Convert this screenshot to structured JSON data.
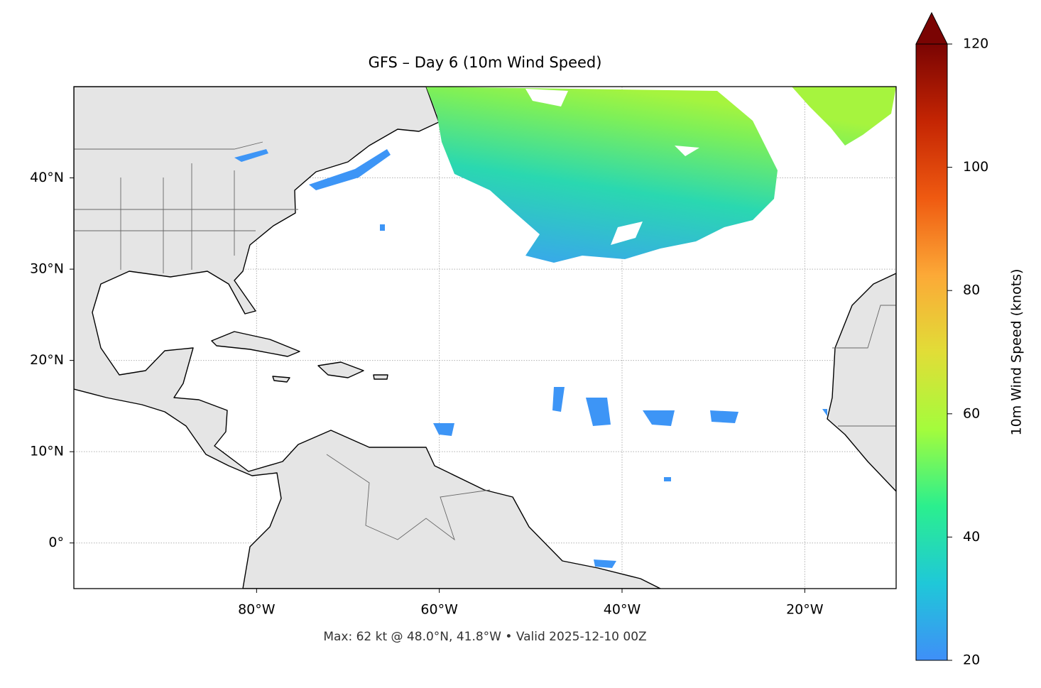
{
  "map": {
    "title": "GFS – Day 6 (10m Wind Speed)",
    "footer": "Max: 62 kt @ 48.0°N, 41.8°W • Valid 2025-12-10 00Z",
    "lonlim": [
      -100,
      -10
    ],
    "latlim": [
      -5,
      50
    ],
    "lon_ticks": [
      {
        "value": -80,
        "label": "80°W"
      },
      {
        "value": -60,
        "label": "60°W"
      },
      {
        "value": -40,
        "label": "40°W"
      },
      {
        "value": -20,
        "label": "20°W"
      }
    ],
    "lat_ticks": [
      {
        "value": 0,
        "label": "0°"
      },
      {
        "value": 10,
        "label": "10°N"
      },
      {
        "value": 20,
        "label": "20°N"
      },
      {
        "value": 30,
        "label": "30°N"
      },
      {
        "value": 40,
        "label": "40°N"
      }
    ],
    "grid": true,
    "colorbar": {
      "label": "10m Wind Speed (knots)",
      "lim": [
        20,
        120
      ],
      "ticks": [
        20,
        40,
        60,
        80,
        100,
        120
      ],
      "colors": [
        "#3f8ff8",
        "#1fc8d8",
        "#2bef8e",
        "#a4fc3c",
        "#e1dd37",
        "#fca937",
        "#ef5a11",
        "#c42503",
        "#7a0403"
      ]
    }
  }
}
